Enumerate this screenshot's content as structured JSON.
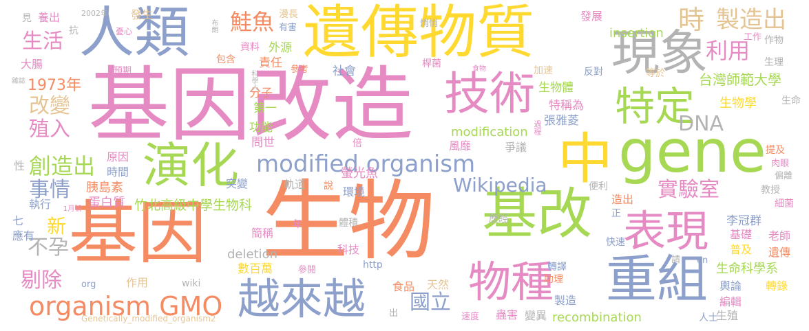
{
  "palette": {
    "orange": "#f58b62",
    "pink": "#e58ac3",
    "blue": "#8da0cb",
    "green": "#a6d854",
    "yellow": "#ffd92f",
    "tan": "#e5c494",
    "gray": "#b3b3b3",
    "teal": "#66c2a5"
  },
  "words": [
    {
      "text": "生物"
    },
    {
      "text": "基因改造"
    },
    {
      "text": "基因"
    },
    {
      "text": "遺傳物質"
    },
    {
      "text": "gene"
    },
    {
      "text": "基改"
    },
    {
      "text": "人類"
    },
    {
      "text": "技術"
    },
    {
      "text": "演化"
    },
    {
      "text": "中"
    },
    {
      "text": "現象"
    },
    {
      "text": "重組"
    },
    {
      "text": "越來越"
    },
    {
      "text": "表現"
    },
    {
      "text": "物種"
    },
    {
      "text": "特定"
    },
    {
      "text": "organism GMO"
    },
    {
      "text": "modified organism"
    },
    {
      "text": "製造出"
    },
    {
      "text": "鮭魚"
    },
    {
      "text": "時"
    },
    {
      "text": "生活"
    },
    {
      "text": "利用"
    },
    {
      "text": "創造出"
    },
    {
      "text": "改變"
    },
    {
      "text": "殖入"
    },
    {
      "text": "Wikipedia"
    },
    {
      "text": "事情"
    },
    {
      "text": "實驗室"
    },
    {
      "text": "DNA"
    },
    {
      "text": "剔除"
    },
    {
      "text": "不孕"
    },
    {
      "text": "國立"
    },
    {
      "text": "新"
    },
    {
      "text": "1973年"
    },
    {
      "text": "竹北高級中學生物科"
    },
    {
      "text": "台灣師範大學"
    },
    {
      "text": "生物學"
    },
    {
      "text": "生命科學系"
    },
    {
      "text": "modification"
    },
    {
      "text": "insertion"
    },
    {
      "text": "recombination"
    },
    {
      "text": "deletion"
    },
    {
      "text": "張雅菱"
    },
    {
      "text": "李冠群"
    },
    {
      "text": "螢光魚"
    },
    {
      "text": "胰島素"
    },
    {
      "text": "蛋白質"
    },
    {
      "text": "數百萬"
    },
    {
      "text": "發展"
    },
    {
      "text": "外源"
    },
    {
      "text": "責任"
    },
    {
      "text": "資料"
    },
    {
      "text": "社會"
    },
    {
      "text": "第一"
    },
    {
      "text": "功能"
    },
    {
      "text": "問世"
    },
    {
      "text": "分子"
    },
    {
      "text": "生物體"
    },
    {
      "text": "特稱為"
    },
    {
      "text": "風靡"
    },
    {
      "text": "爭議"
    },
    {
      "text": "原因"
    },
    {
      "text": "時間"
    },
    {
      "text": "突變"
    },
    {
      "text": "軌道"
    },
    {
      "text": "環境"
    },
    {
      "text": "簡稱"
    },
    {
      "text": "參閱"
    },
    {
      "text": "科技"
    },
    {
      "text": "食品"
    },
    {
      "text": "天然"
    },
    {
      "text": "蟲害"
    },
    {
      "text": "變異"
    },
    {
      "text": "製造"
    },
    {
      "text": "轉譯"
    },
    {
      "text": "助理"
    },
    {
      "text": "輿論"
    },
    {
      "text": "轉錄"
    },
    {
      "text": "編輯"
    },
    {
      "text": "人士"
    },
    {
      "text": "生殖"
    },
    {
      "text": "老師"
    },
    {
      "text": "遺傳"
    },
    {
      "text": "普及"
    },
    {
      "text": "基礎"
    },
    {
      "text": "教授"
    },
    {
      "text": "細菌"
    },
    {
      "text": "偏離"
    },
    {
      "text": "肉眼"
    },
    {
      "text": "提及"
    },
    {
      "text": "生命"
    },
    {
      "text": "生理"
    },
    {
      "text": "作物"
    },
    {
      "text": "工作"
    },
    {
      "text": "加速"
    },
    {
      "text": "反對"
    },
    {
      "text": "等於"
    },
    {
      "text": "桿菌"
    },
    {
      "text": "悄悄"
    },
    {
      "text": "漫長"
    },
    {
      "text": "有害"
    },
    {
      "text": "發生"
    },
    {
      "text": "2002年"
    },
    {
      "text": "憂心"
    },
    {
      "text": "養出"
    },
    {
      "text": "見"
    },
    {
      "text": "抗"
    },
    {
      "text": "大腸"
    },
    {
      "text": "預期"
    },
    {
      "text": "包含"
    },
    {
      "text": "參考"
    },
    {
      "text": "布朗"
    },
    {
      "text": "食物"
    },
    {
      "text": "科學人"
    },
    {
      "text": "雜誌"
    },
    {
      "text": "倍"
    },
    {
      "text": "性"
    },
    {
      "text": "執行"
    },
    {
      "text": "1月號"
    },
    {
      "text": "七"
    },
    {
      "text": "應有"
    },
    {
      "text": "作用"
    },
    {
      "text": "wiki"
    },
    {
      "text": "org"
    },
    {
      "text": "http"
    },
    {
      "text": "Genetically_modified_organism2"
    },
    {
      "text": "出"
    },
    {
      "text": "速度"
    },
    {
      "text": "en"
    },
    {
      "text": "請"
    },
    {
      "text": "快速"
    },
    {
      "text": "正"
    },
    {
      "text": "造出"
    },
    {
      "text": "歷經"
    },
    {
      "text": "體積"
    },
    {
      "text": "年"
    },
    {
      "text": "便利"
    },
    {
      "text": "說"
    },
    {
      "text": "過程"
    }
  ]
}
